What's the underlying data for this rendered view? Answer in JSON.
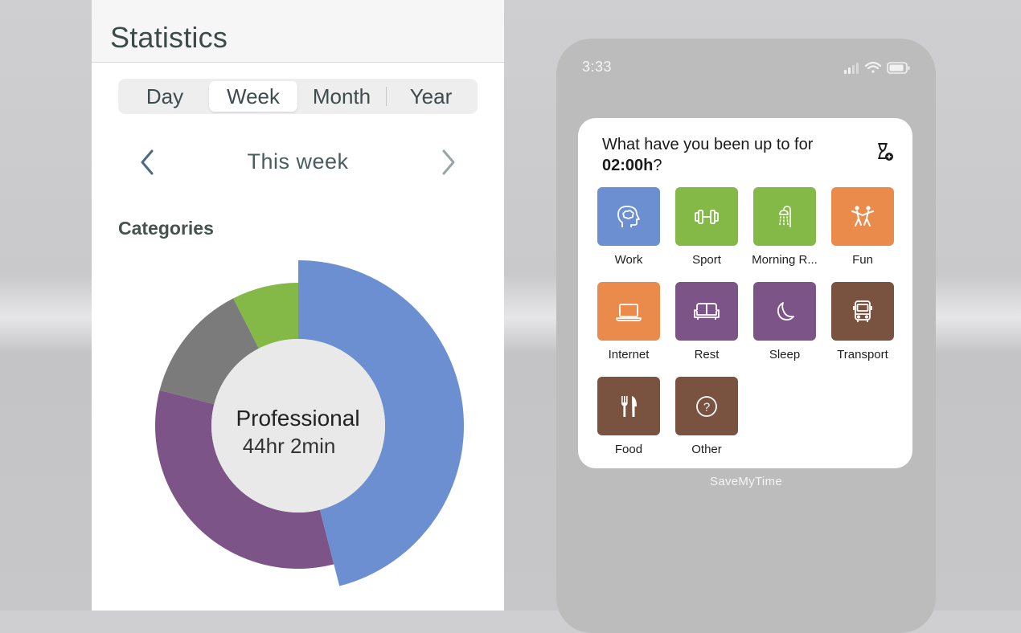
{
  "statistics": {
    "title": "Statistics",
    "periods": [
      "Day",
      "Week",
      "Month",
      "Year"
    ],
    "active_period": "Week",
    "week_label": "This week",
    "categories_heading": "Categories",
    "donut": {
      "center_title": "Professional",
      "center_value": "44hr 2min",
      "segments": [
        {
          "color": "#6b8fd0",
          "fraction": 0.46
        },
        {
          "color": "#7d5487",
          "fraction": 0.33
        },
        {
          "color": "#7b7b7b",
          "fraction": 0.135
        },
        {
          "color": "#85b947",
          "fraction": 0.075
        }
      ],
      "inner_color": "#e9e9e9"
    }
  },
  "phone": {
    "status_time": "3:33",
    "widget": {
      "question_prefix": "What have you been up to for ",
      "question_time": "02:00h",
      "question_suffix": "?",
      "categories": [
        {
          "label": "Work",
          "color": "#6b8fd0",
          "icon": "brain-icon"
        },
        {
          "label": "Sport",
          "color": "#85b947",
          "icon": "dumbbell-icon"
        },
        {
          "label": "Morning R...",
          "color": "#85b947",
          "icon": "shower-icon"
        },
        {
          "label": "Fun",
          "color": "#ea8b4b",
          "icon": "dancing-icon"
        },
        {
          "label": "Internet",
          "color": "#ea8b4b",
          "icon": "laptop-icon"
        },
        {
          "label": "Rest",
          "color": "#7d5487",
          "icon": "sofa-icon"
        },
        {
          "label": "Sleep",
          "color": "#7d5487",
          "icon": "moon-icon"
        },
        {
          "label": "Transport",
          "color": "#7a5240",
          "icon": "bus-icon"
        },
        {
          "label": "Food",
          "color": "#7a5240",
          "icon": "fork-knife-icon"
        },
        {
          "label": "Other",
          "color": "#7a5240",
          "icon": "question-icon"
        }
      ]
    },
    "app_caption": "SaveMyTime"
  }
}
